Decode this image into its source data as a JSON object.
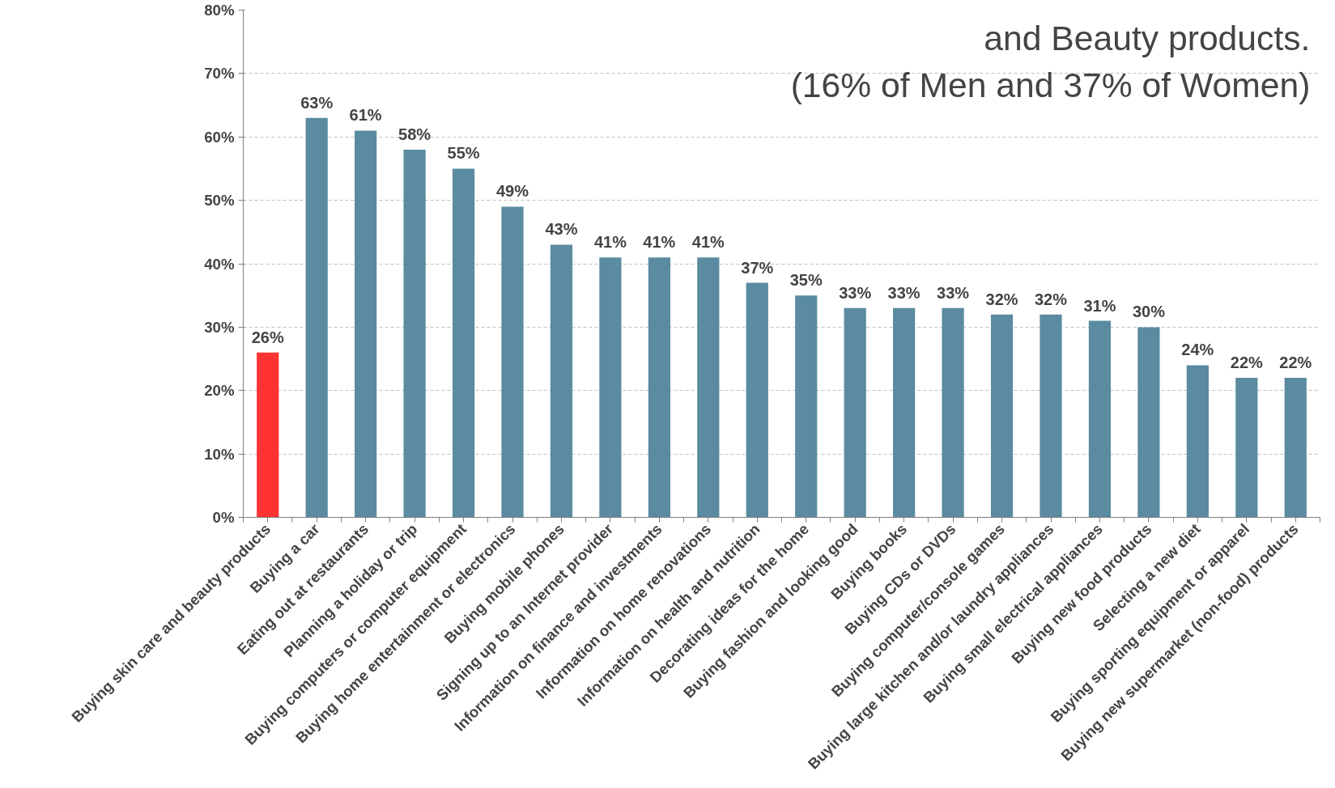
{
  "chart_data": {
    "type": "bar",
    "categories": [
      "Buying skin care and beauty products",
      "Buying a car",
      "Eating out at restaurants",
      "Planning a holiday or trip",
      "Buying computers or computer equipment",
      "Buying home entertainment or electronics",
      "Buying mobile phones",
      "Signing up to an Internet provider",
      "Information on finance and investments",
      "Information on home renovations",
      "Information on health and nutrition",
      "Decorating ideas for the home",
      "Buying fashion and looking good",
      "Buying books",
      "Buying CDs or DVDs",
      "Buying computer/console games",
      "Buying large kitchen and/or laundry appliances",
      "Buying small electrical appliances",
      "Buying new food products",
      "Selecting a new diet",
      "Buying sporting equipment or apparel",
      "Buying new supermarket (non-food) products"
    ],
    "values": [
      26,
      63,
      61,
      58,
      55,
      49,
      43,
      41,
      41,
      41,
      37,
      35,
      33,
      33,
      33,
      32,
      32,
      31,
      30,
      24,
      22,
      22
    ],
    "value_labels": [
      "26%",
      "63%",
      "61%",
      "58%",
      "55%",
      "49%",
      "43%",
      "41%",
      "41%",
      "41%",
      "37%",
      "35%",
      "33%",
      "33%",
      "33%",
      "32%",
      "32%",
      "31%",
      "30%",
      "24%",
      "22%",
      "22%"
    ],
    "colors": [
      "#ff3333",
      "#5a8ba0",
      "#5a8ba0",
      "#5a8ba0",
      "#5a8ba0",
      "#5a8ba0",
      "#5a8ba0",
      "#5a8ba0",
      "#5a8ba0",
      "#5a8ba0",
      "#5a8ba0",
      "#5a8ba0",
      "#5a8ba0",
      "#5a8ba0",
      "#5a8ba0",
      "#5a8ba0",
      "#5a8ba0",
      "#5a8ba0",
      "#5a8ba0",
      "#5a8ba0",
      "#5a8ba0",
      "#5a8ba0"
    ],
    "ylim": [
      0,
      80
    ],
    "yticks": [
      {
        "value": 0,
        "label": "0%"
      },
      {
        "value": 10,
        "label": "10%"
      },
      {
        "value": 20,
        "label": "20%"
      },
      {
        "value": 30,
        "label": "30%"
      },
      {
        "value": 40,
        "label": "40%"
      },
      {
        "value": 50,
        "label": "50%"
      },
      {
        "value": 60,
        "label": "60%"
      },
      {
        "value": 70,
        "label": "70%"
      },
      {
        "value": 80,
        "label": "80%"
      }
    ],
    "grid": "y",
    "annotations": [
      "and Beauty products.",
      "(16% of Men and 37% of Women)"
    ]
  }
}
